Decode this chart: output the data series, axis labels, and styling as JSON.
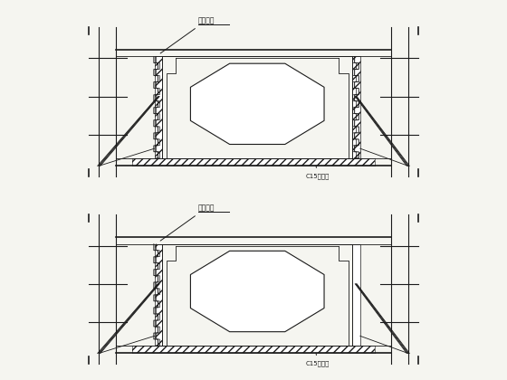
{
  "bg_color": "#f5f5f0",
  "line_color": "#1a1a1a",
  "label1": "龙骨模板",
  "label2": "C15垫层地",
  "fig_width": 5.6,
  "fig_height": 4.2,
  "dpi": 100,
  "hatch_density": "////"
}
